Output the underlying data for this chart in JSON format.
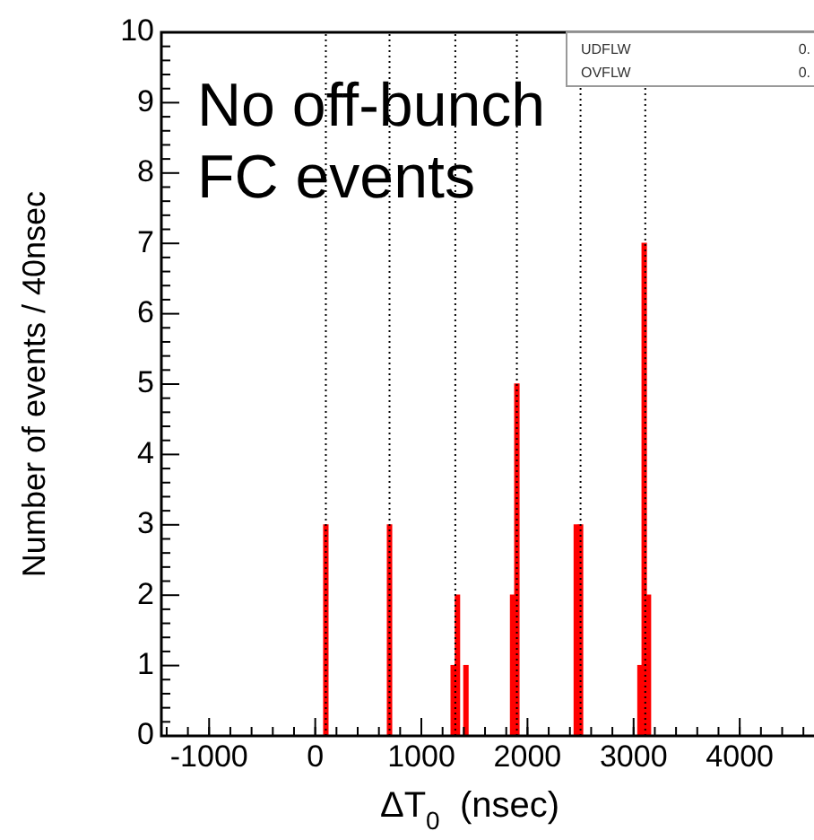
{
  "chart_data": {
    "type": "bar",
    "xlabel": "ΔT$_{0}$  (nsec)",
    "ylabel": "Number of events / 40nsec",
    "color": "#ff0000",
    "x": [
      100,
      700,
      1300,
      1340,
      1420,
      1860,
      1900,
      2460,
      2500,
      3060,
      3100,
      3140
    ],
    "values": [
      3,
      3,
      1,
      2,
      1,
      2,
      5,
      3,
      3,
      1,
      7,
      2
    ],
    "xlim": [
      -1450,
      4700
    ],
    "xticks": [
      -1000,
      0,
      1000,
      2000,
      3000,
      4000
    ],
    "ylim": [
      0,
      10
    ],
    "yticks": [
      0,
      1,
      2,
      3,
      4,
      5,
      6,
      7,
      8,
      9,
      10
    ],
    "grid": false,
    "legend": false,
    "ref_lines": [
      {
        "axis": "x",
        "value": 100,
        "color": "#000000",
        "line_style": "dotted"
      },
      {
        "axis": "x",
        "value": 700,
        "color": "#000000",
        "line_style": "dotted"
      },
      {
        "axis": "x",
        "value": 1320,
        "color": "#000000",
        "line_style": "dotted"
      },
      {
        "axis": "x",
        "value": 1900,
        "color": "#000000",
        "line_style": "dotted"
      },
      {
        "axis": "x",
        "value": 2500,
        "color": "#000000",
        "line_style": "dotted"
      },
      {
        "axis": "x",
        "value": 3110,
        "color": "#000000",
        "line_style": "dotted"
      }
    ],
    "annotations": [
      "No off-bunch FC events",
      "UDFLW 0.",
      "OVFLW 0."
    ]
  }
}
